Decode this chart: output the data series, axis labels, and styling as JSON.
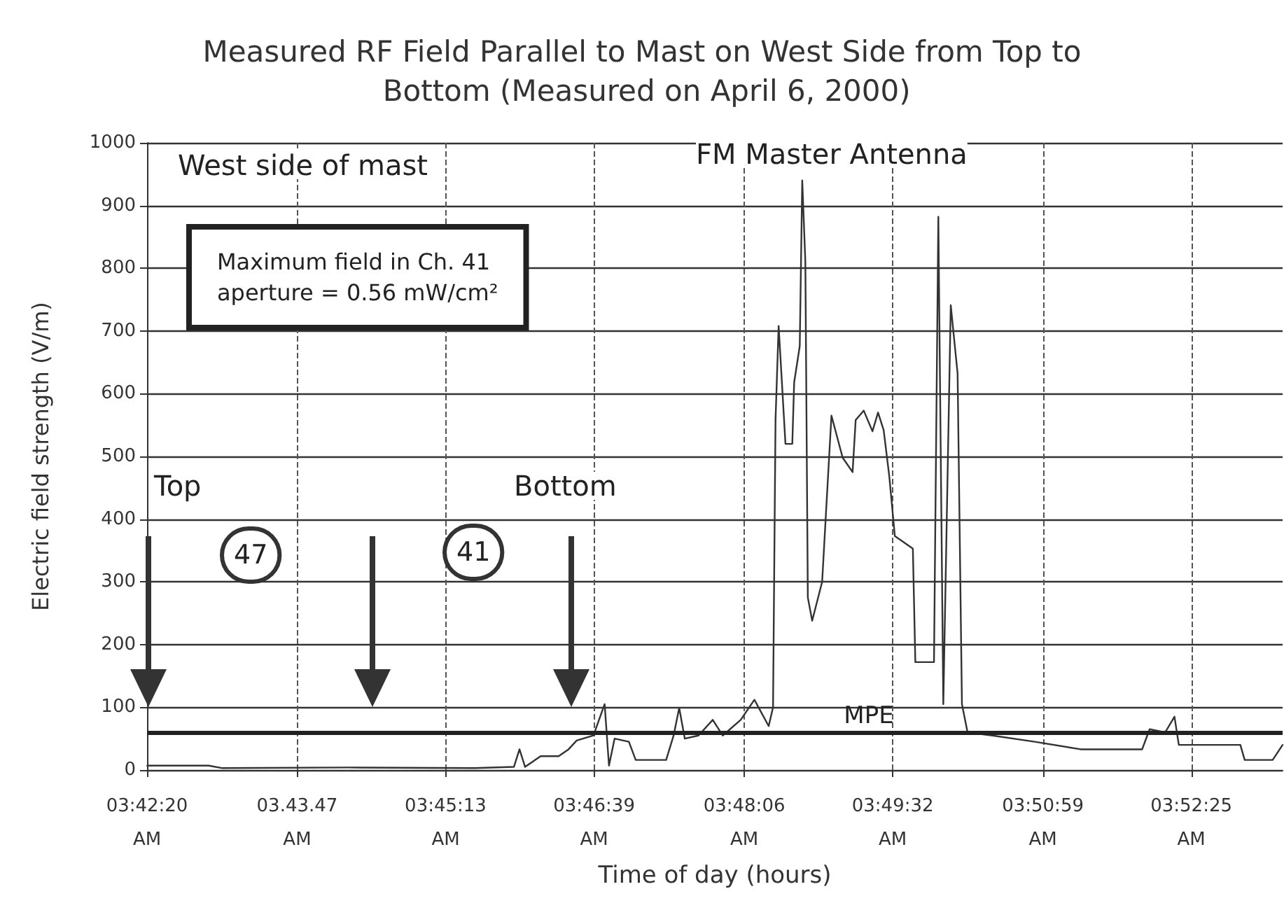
{
  "chart_data": {
    "type": "line",
    "title": "Measured RF Field Parallel to Mast on West Side from Top to Bottom (Measured on April 6, 2000)",
    "xlabel": "Time of day (hours)",
    "ylabel": "Electric field strength (V/m)",
    "annotations": [
      "West side of mast",
      "FM Master Antenna",
      "Maximum field in Ch. 41\naperture = 0.56 mW/cm²",
      "Top",
      "47",
      "Bottom",
      "41"
    ],
    "series": [
      {
        "color": "#333333",
        "x": [
          3.7056,
          3.7155,
          3.7177,
          3.738,
          3.7583,
          3.7646,
          3.7655,
          3.7664,
          3.7689,
          3.7718,
          3.7734,
          3.7747,
          3.7774,
          3.7792,
          3.7799,
          3.7808,
          3.7831,
          3.7842,
          3.7891,
          3.7903,
          3.7912,
          3.7921,
          3.7943,
          3.7966,
          3.7982,
          3.8011,
          3.8033,
          3.8056,
          3.8063,
          3.8067,
          3.8072,
          3.8083,
          3.8094,
          3.8097,
          3.8106,
          3.811,
          3.8115,
          3.8119,
          3.8126,
          3.8142,
          3.8157,
          3.8175,
          3.8191,
          3.8196,
          3.8209,
          3.8223,
          3.8232,
          3.8241,
          3.825,
          3.8259,
          3.8288,
          3.8292,
          3.8322,
          3.8329,
          3.8337,
          3.8349,
          3.836,
          3.8367,
          3.8376,
          3.8416,
          3.8484,
          3.8558,
          3.8657,
          3.8669,
          3.8694,
          3.8709,
          3.8716,
          3.8815,
          3.8822,
          3.8867,
          3.8883
        ],
        "values": [
          7,
          7,
          3,
          4,
          3,
          5,
          33,
          5,
          22,
          22,
          33,
          47,
          55,
          105,
          7,
          50,
          45,
          16,
          16,
          55,
          99,
          50,
          55,
          80,
          55,
          80,
          112,
          70,
          100,
          558,
          708,
          520,
          520,
          618,
          676,
          940,
          810,
          275,
          238,
          300,
          565,
          498,
          475,
          558,
          573,
          540,
          570,
          542,
          469,
          373,
          353,
          172,
          172,
          882,
          105,
          741,
          632,
          105,
          60,
          55,
          45,
          33,
          33,
          65,
          60,
          85,
          40,
          40,
          16,
          16,
          40
        ]
      }
    ],
    "xlim": [
      3.70556,
      3.8883
    ],
    "xticks": [
      {
        "value": 3.70556,
        "label": "03:42:20 AM"
      },
      {
        "value": 3.72972,
        "label": "03.43.47 AM"
      },
      {
        "value": 3.75361,
        "label": "03:45:13 AM"
      },
      {
        "value": 3.7775,
        "label": "03:46:39 AM"
      },
      {
        "value": 3.80167,
        "label": "03:48:06 AM"
      },
      {
        "value": 3.82556,
        "label": "03:49:32 AM"
      },
      {
        "value": 3.84972,
        "label": "03:50:59 AM"
      },
      {
        "value": 3.87361,
        "label": "03:52:25 AM"
      }
    ],
    "ylim": [
      0,
      1000
    ],
    "yticks": [
      0,
      100,
      200,
      300,
      400,
      500,
      600,
      700,
      800,
      900,
      1000
    ],
    "ref_lines": [
      {
        "axis": "y",
        "value": 60,
        "label": "MPE"
      }
    ],
    "grid": true,
    "marker": "none",
    "line_style": "solid"
  }
}
